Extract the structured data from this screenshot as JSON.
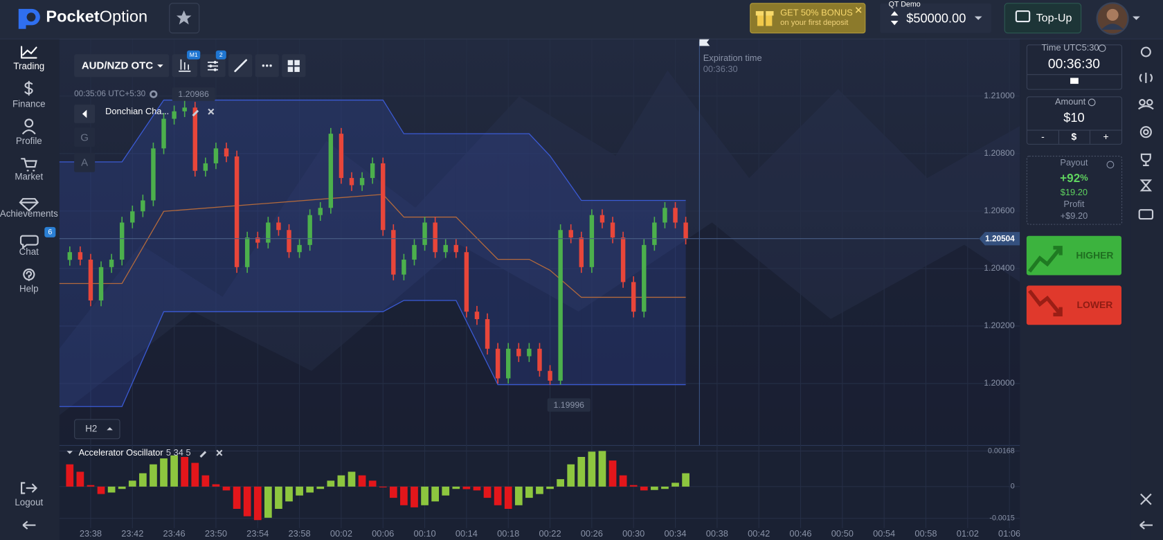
{
  "header": {
    "brand": [
      "Pocket",
      "Option"
    ],
    "bonus": {
      "title": "GET 50% BONUS",
      "subtitle": "on your first deposit"
    },
    "account": {
      "label": "QT Demo",
      "balance": "$50000.00"
    },
    "topup": "Top-Up"
  },
  "sidebar": {
    "items": [
      {
        "label": "Trading"
      },
      {
        "label": "Finance"
      },
      {
        "label": "Profile"
      },
      {
        "label": "Market"
      },
      {
        "label": "Achievements"
      },
      {
        "label": "Chat",
        "badge": "6"
      },
      {
        "label": "Help"
      },
      {
        "label": "Logout"
      }
    ]
  },
  "toolbar": {
    "pair": "AUD/NZD OTC",
    "timeframe_badge": "M1",
    "indicator_badge": "2",
    "clock": "00:35:06 UTC+5:30",
    "indicator": "Donchian Cha...",
    "drawing_buttons": [
      "G",
      "A"
    ],
    "expiration_label": "Expiration time",
    "expiration_time": "00:36:30",
    "period": "H2"
  },
  "panel": {
    "time_label": "Time UTC5:30",
    "time": "00:36:30",
    "amount_label": "Amount",
    "amount": "$10",
    "amount_buttons": [
      "-",
      "$",
      "+"
    ],
    "payout_label": "Payout",
    "payout": "+92",
    "payout_unit": "%",
    "payout_amount": "$19.20",
    "profit_label": "Profit",
    "profit": "+$9.20",
    "higher": "HIGHER",
    "lower": "LOWER"
  },
  "chart_data": [
    {
      "type": "candlestick",
      "color_up": "#4cb04c",
      "color_down": "#e8463a",
      "grid": true,
      "xlim": [
        "23:35",
        "01:07"
      ],
      "xticks": [
        "23:38",
        "23:42",
        "23:46",
        "23:50",
        "23:54",
        "23:58",
        "00:02",
        "00:06",
        "00:10",
        "00:14",
        "00:18",
        "00:22",
        "00:26",
        "00:30",
        "00:34",
        "00:38",
        "00:42",
        "00:46",
        "00:50",
        "00:54",
        "00:58",
        "01:02",
        "01:06"
      ],
      "ylim": [
        1.19786,
        1.212
      ],
      "yticks": [
        {
          "value": 1.2,
          "label": "1.20000"
        },
        {
          "value": 1.202,
          "label": "1.20200"
        },
        {
          "value": 1.204,
          "label": "1.20400"
        },
        {
          "value": 1.206,
          "label": "1.20600"
        },
        {
          "value": 1.208,
          "label": "1.20800"
        },
        {
          "value": 1.21,
          "label": "1.21000"
        }
      ],
      "high_label": 1.20986,
      "low_label": 1.19996,
      "last_price": 1.20504,
      "x": [
        "23:36",
        "23:37",
        "23:38",
        "23:39",
        "23:40",
        "23:41",
        "23:42",
        "23:43",
        "23:44",
        "23:45",
        "23:46",
        "23:47",
        "23:48",
        "23:49",
        "23:50",
        "23:51",
        "23:52",
        "23:53",
        "23:54",
        "23:55",
        "23:56",
        "23:57",
        "23:58",
        "23:59",
        "00:00",
        "00:01",
        "00:02",
        "00:03",
        "00:04",
        "00:05",
        "00:06",
        "00:07",
        "00:08",
        "00:09",
        "00:10",
        "00:11",
        "00:12",
        "00:13",
        "00:14",
        "00:15",
        "00:16",
        "00:17",
        "00:18",
        "00:19",
        "00:20",
        "00:21",
        "00:22",
        "00:23",
        "00:24",
        "00:25",
        "00:26",
        "00:27",
        "00:28",
        "00:29",
        "00:30",
        "00:31",
        "00:32",
        "00:33",
        "00:34",
        "00:35"
      ],
      "open": [
        1.2043,
        1.20457,
        1.20431,
        1.20289,
        1.20405,
        1.20431,
        1.2056,
        1.20599,
        1.20637,
        1.20818,
        1.20921,
        1.20947,
        1.2096,
        1.2074,
        1.20766,
        1.20818,
        1.2079,
        1.20405,
        1.20508,
        1.2049,
        1.2056,
        1.20534,
        1.20457,
        1.20482,
        1.20586,
        1.20611,
        1.20869,
        1.20715,
        1.2069,
        1.20715,
        1.20766,
        1.20534,
        1.20379,
        1.20431,
        1.20482,
        1.2056,
        1.20457,
        1.20482,
        1.20457,
        1.2025,
        1.20224,
        1.20121,
        1.20018,
        1.20121,
        1.20095,
        1.20121,
        1.20044,
        1.2001,
        1.20534,
        1.20508,
        1.20405,
        1.20586,
        1.2056,
        1.20508,
        1.20353,
        1.2025,
        1.20482,
        1.2056,
        1.20611,
        1.2056
      ],
      "high": [
        1.20477,
        1.20477,
        1.20451,
        1.20425,
        1.20451,
        1.2058,
        1.20619,
        1.20657,
        1.20838,
        1.20941,
        1.20967,
        1.20986,
        1.2098,
        1.20786,
        1.20838,
        1.20838,
        1.2081,
        1.20528,
        1.20528,
        1.2058,
        1.2058,
        1.20554,
        1.20502,
        1.20606,
        1.20631,
        1.20889,
        1.20889,
        1.20735,
        1.20735,
        1.20786,
        1.20786,
        1.20554,
        1.20451,
        1.20502,
        1.2058,
        1.2058,
        1.20502,
        1.20502,
        1.20477,
        1.2027,
        1.20244,
        1.20141,
        1.20141,
        1.20141,
        1.20141,
        1.20141,
        1.20064,
        1.20554,
        1.20554,
        1.20528,
        1.20606,
        1.20606,
        1.2058,
        1.20528,
        1.20373,
        1.20502,
        1.2058,
        1.20631,
        1.20631,
        1.2058
      ],
      "low": [
        1.2041,
        1.20411,
        1.20269,
        1.20269,
        1.20385,
        1.20411,
        1.2054,
        1.20579,
        1.20617,
        1.20798,
        1.20901,
        1.20927,
        1.2072,
        1.2072,
        1.20746,
        1.2077,
        1.20385,
        1.20385,
        1.2047,
        1.2047,
        1.20514,
        1.20437,
        1.20437,
        1.20462,
        1.20566,
        1.20591,
        1.20695,
        1.2067,
        1.2067,
        1.20695,
        1.20514,
        1.20359,
        1.20359,
        1.20411,
        1.20462,
        1.20437,
        1.20437,
        1.20437,
        1.2023,
        1.20204,
        1.20101,
        1.2,
        1.2,
        1.20075,
        1.20075,
        1.20024,
        1.19996,
        1.19996,
        1.20488,
        1.20385,
        1.20385,
        1.2054,
        1.20488,
        1.20333,
        1.2023,
        1.2023,
        1.20462,
        1.2054,
        1.2054,
        1.20484
      ],
      "close": [
        1.20457,
        1.20431,
        1.20289,
        1.20405,
        1.20431,
        1.2056,
        1.20599,
        1.20637,
        1.20818,
        1.20921,
        1.20947,
        1.2096,
        1.2074,
        1.20766,
        1.20818,
        1.2079,
        1.20405,
        1.20508,
        1.2049,
        1.2056,
        1.20534,
        1.20457,
        1.20482,
        1.20586,
        1.20611,
        1.20869,
        1.20715,
        1.2069,
        1.20715,
        1.20766,
        1.20534,
        1.20379,
        1.20431,
        1.20482,
        1.2056,
        1.20457,
        1.20482,
        1.20457,
        1.2025,
        1.20224,
        1.20121,
        1.20018,
        1.20121,
        1.20095,
        1.20121,
        1.20044,
        1.2001,
        1.20534,
        1.20508,
        1.20405,
        1.20586,
        1.2056,
        1.20508,
        1.20353,
        1.2025,
        1.20482,
        1.2056,
        1.20611,
        1.2056,
        1.20504
      ],
      "channel": {
        "color": "#3b5bd6",
        "middle_color": "#b46a3c",
        "x": [
          "23:35",
          "23:41",
          "23:45",
          "00:06",
          "00:08",
          "00:13",
          "00:17",
          "00:20",
          "00:22",
          "00:25",
          "00:35"
        ],
        "upper": [
          1.20771,
          1.20771,
          1.20986,
          1.20986,
          1.20869,
          1.20869,
          1.20869,
          1.20869,
          1.20792,
          1.20637,
          1.20637
        ],
        "middle": [
          1.20348,
          1.20348,
          1.20599,
          1.20658,
          1.20579,
          1.20579,
          1.20432,
          1.20432,
          1.20394,
          1.203,
          1.203
        ],
        "lower": [
          1.1992,
          1.1992,
          1.2025,
          1.2025,
          1.20289,
          1.20289,
          1.19996,
          1.19996,
          1.19996,
          1.19996,
          1.19996
        ]
      }
    },
    {
      "type": "bar",
      "name": "Accelerator Oscillator",
      "params": "5 34 5",
      "color_up": "#8dc63f",
      "color_down": "#e3161b",
      "ylim": [
        -0.00196,
        0.00196
      ],
      "yticks": [
        -0.0015,
        0,
        0.00168
      ],
      "values": [
        0.00105,
        0.0007,
        7e-05,
        -0.00035,
        -0.00028,
        -0.00011,
        0.00028,
        0.00063,
        0.00105,
        0.00133,
        0.00147,
        0.0014,
        0.00112,
        0.00053,
        0.00011,
        -0.00018,
        -0.00105,
        -0.0014,
        -0.00158,
        -0.00147,
        -0.00105,
        -0.0007,
        -0.00042,
        -0.00028,
        -0.00011,
        0.00028,
        0.00053,
        0.0007,
        0.00053,
        0.00028,
        -4e-05,
        -0.00053,
        -0.00088,
        -0.00098,
        -0.00088,
        -0.0007,
        -0.00042,
        -0.00011,
        -0.00012,
        -0.00018,
        -0.00053,
        -0.00088,
        -0.00105,
        -0.00088,
        -0.00053,
        -0.00035,
        -0.00011,
        0.00035,
        0.00105,
        0.0014,
        0.00165,
        0.00168,
        0.00123,
        0.00053,
        7e-05,
        -0.00018,
        -0.00016,
        -0.00011,
        0.00018,
        0.00063
      ]
    }
  ]
}
